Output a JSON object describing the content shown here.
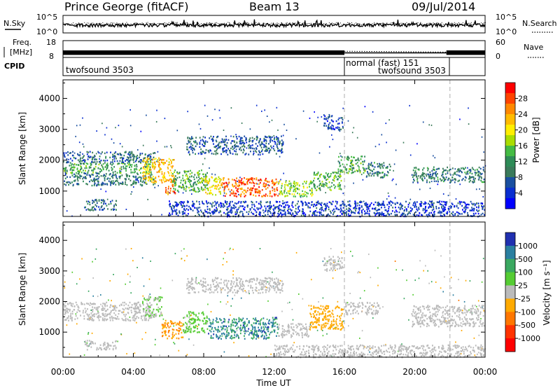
{
  "header": {
    "station": "Prince George (fitACF)",
    "beam": "Beam 13",
    "date": "09/Jul/2014"
  },
  "noise_panel": {
    "left_label": "N.Sky",
    "right_label": "N.Search",
    "left_ticks": [
      "10^5",
      "10^0"
    ],
    "right_ticks": [
      "10^5",
      "10^0"
    ]
  },
  "freq_panel": {
    "left_label_1": "Freq.",
    "left_label_2": "[MHz]",
    "right_label": "Nave",
    "left_ticks": [
      "18",
      "8"
    ],
    "right_ticks": [
      "60",
      "0"
    ],
    "freq_mhz": 10.7,
    "nave_before": 22,
    "nave_after": 18
  },
  "cpid_panel": {
    "label": "CPID",
    "segments": [
      {
        "text": "twofsound 3503",
        "start": 0,
        "end": 16
      },
      {
        "text": "normal (fast) 151",
        "start": 16,
        "end": 22
      },
      {
        "text": "twofsound 3503",
        "start": 16,
        "end": 22
      }
    ],
    "dividers": [
      16,
      22
    ]
  },
  "x_axis": {
    "label": "Time UT",
    "range": [
      0,
      24
    ],
    "ticks": [
      {
        "v": 0,
        "label": "00:00"
      },
      {
        "v": 4,
        "label": "04:00"
      },
      {
        "v": 8,
        "label": "08:00"
      },
      {
        "v": 12,
        "label": "12:00"
      },
      {
        "v": 16,
        "label": "16:00"
      },
      {
        "v": 20,
        "label": "20:00"
      },
      {
        "v": 24,
        "label": "00:00"
      }
    ]
  },
  "chart_data": [
    {
      "type": "heatmap",
      "name": "power",
      "xlabel": "Time UT",
      "ylabel": "Slant Range [km]",
      "xlim": [
        0,
        24
      ],
      "ylim": [
        180,
        4600
      ],
      "yticks": [
        1000,
        2000,
        3000,
        4000
      ],
      "colorbar": {
        "label": "Power [dB]",
        "ticks": [
          "28",
          "24",
          "20",
          "16",
          "12",
          "8",
          "4"
        ],
        "colors": [
          "#ff0000",
          "#ff4400",
          "#ff8800",
          "#ffbb00",
          "#ffee00",
          "#aadd00",
          "#44bb44",
          "#2e8b57",
          "#3a7a5a",
          "#1a4fa0",
          "#0a2fd0",
          "#0000ff"
        ],
        "min": 0,
        "max": 32
      },
      "bands": [
        {
          "t0": 0.0,
          "t1": 5.0,
          "r0": 1600,
          "r1": 1950,
          "v": 13
        },
        {
          "t0": 0.0,
          "t1": 5.2,
          "r0": 1950,
          "r1": 2300,
          "v": 8
        },
        {
          "t0": 0.0,
          "t1": 5.2,
          "r0": 1200,
          "r1": 1600,
          "v": 9
        },
        {
          "t0": 1.2,
          "t1": 3.0,
          "r0": 400,
          "r1": 750,
          "v": 8
        },
        {
          "t0": 4.5,
          "t1": 6.3,
          "r0": 1300,
          "r1": 2100,
          "v": 22
        },
        {
          "t0": 5.8,
          "t1": 6.4,
          "r0": 900,
          "r1": 1400,
          "v": 26
        },
        {
          "t0": 6.2,
          "t1": 8.2,
          "r0": 1000,
          "r1": 1700,
          "v": 14
        },
        {
          "t0": 8.0,
          "t1": 9.0,
          "r0": 900,
          "r1": 1500,
          "v": 20
        },
        {
          "t0": 9.0,
          "t1": 12.2,
          "r0": 850,
          "r1": 1450,
          "v": 27
        },
        {
          "t0": 12.2,
          "t1": 14.2,
          "r0": 850,
          "r1": 1350,
          "v": 17
        },
        {
          "t0": 14.2,
          "t1": 15.8,
          "r0": 1050,
          "r1": 1650,
          "v": 14
        },
        {
          "t0": 15.6,
          "t1": 17.2,
          "r0": 1600,
          "r1": 2150,
          "v": 13
        },
        {
          "t0": 17.2,
          "t1": 18.6,
          "r0": 1450,
          "r1": 1950,
          "v": 10
        },
        {
          "t0": 19.8,
          "t1": 24.0,
          "r0": 1300,
          "r1": 1800,
          "v": 10
        },
        {
          "t0": 7.0,
          "t1": 12.5,
          "r0": 2200,
          "r1": 2800,
          "v": 7
        },
        {
          "t0": 14.8,
          "t1": 15.9,
          "r0": 3000,
          "r1": 3500,
          "v": 6
        },
        {
          "t0": 6.0,
          "t1": 24.0,
          "r0": 200,
          "r1": 700,
          "v": 5
        }
      ]
    },
    {
      "type": "heatmap",
      "name": "velocity",
      "xlabel": "Time UT",
      "ylabel": "Slant Range [km]",
      "xlim": [
        0,
        24
      ],
      "ylim": [
        180,
        4600
      ],
      "yticks": [
        1000,
        2000,
        3000,
        4000
      ],
      "colorbar": {
        "label": "Velocity [m s⁻¹]",
        "ticks": [
          "1000",
          "500",
          "100",
          "25",
          "-25",
          "-100",
          "-500",
          "-1000"
        ],
        "colors": [
          "#2030b0",
          "#2a7fa0",
          "#3aa860",
          "#55cc33",
          "#bbbbbb",
          "#ffaa00",
          "#ff7700",
          "#ff3300",
          "#ff0000"
        ],
        "min": -1000,
        "max": 1000
      },
      "bands": [
        {
          "t0": 0.0,
          "t1": 5.0,
          "r0": 1400,
          "r1": 2000,
          "v": 0
        },
        {
          "t0": 1.2,
          "t1": 3.0,
          "r0": 450,
          "r1": 750,
          "v": 0
        },
        {
          "t0": 4.5,
          "t1": 5.6,
          "r0": 1500,
          "r1": 2200,
          "v": 120
        },
        {
          "t0": 5.6,
          "t1": 6.8,
          "r0": 800,
          "r1": 1400,
          "v": -300
        },
        {
          "t0": 6.8,
          "t1": 8.2,
          "r0": 1000,
          "r1": 1700,
          "v": 150
        },
        {
          "t0": 8.2,
          "t1": 12.2,
          "r0": 800,
          "r1": 1500,
          "v": 600
        },
        {
          "t0": 12.2,
          "t1": 14.0,
          "r0": 850,
          "r1": 1300,
          "v": 60
        },
        {
          "t0": 14.0,
          "t1": 15.9,
          "r0": 1100,
          "r1": 1900,
          "v": -250
        },
        {
          "t0": 16.0,
          "t1": 18.0,
          "r0": 1600,
          "r1": 2000,
          "v": 0
        },
        {
          "t0": 19.8,
          "t1": 24.0,
          "r0": 1200,
          "r1": 1900,
          "v": 0
        },
        {
          "t0": 7.0,
          "t1": 12.5,
          "r0": 2300,
          "r1": 2800,
          "v": 0
        },
        {
          "t0": 14.8,
          "t1": 15.9,
          "r0": 3000,
          "r1": 3500,
          "v": 0
        },
        {
          "t0": 12.0,
          "t1": 24.0,
          "r0": 200,
          "r1": 600,
          "v": 60
        }
      ]
    }
  ]
}
